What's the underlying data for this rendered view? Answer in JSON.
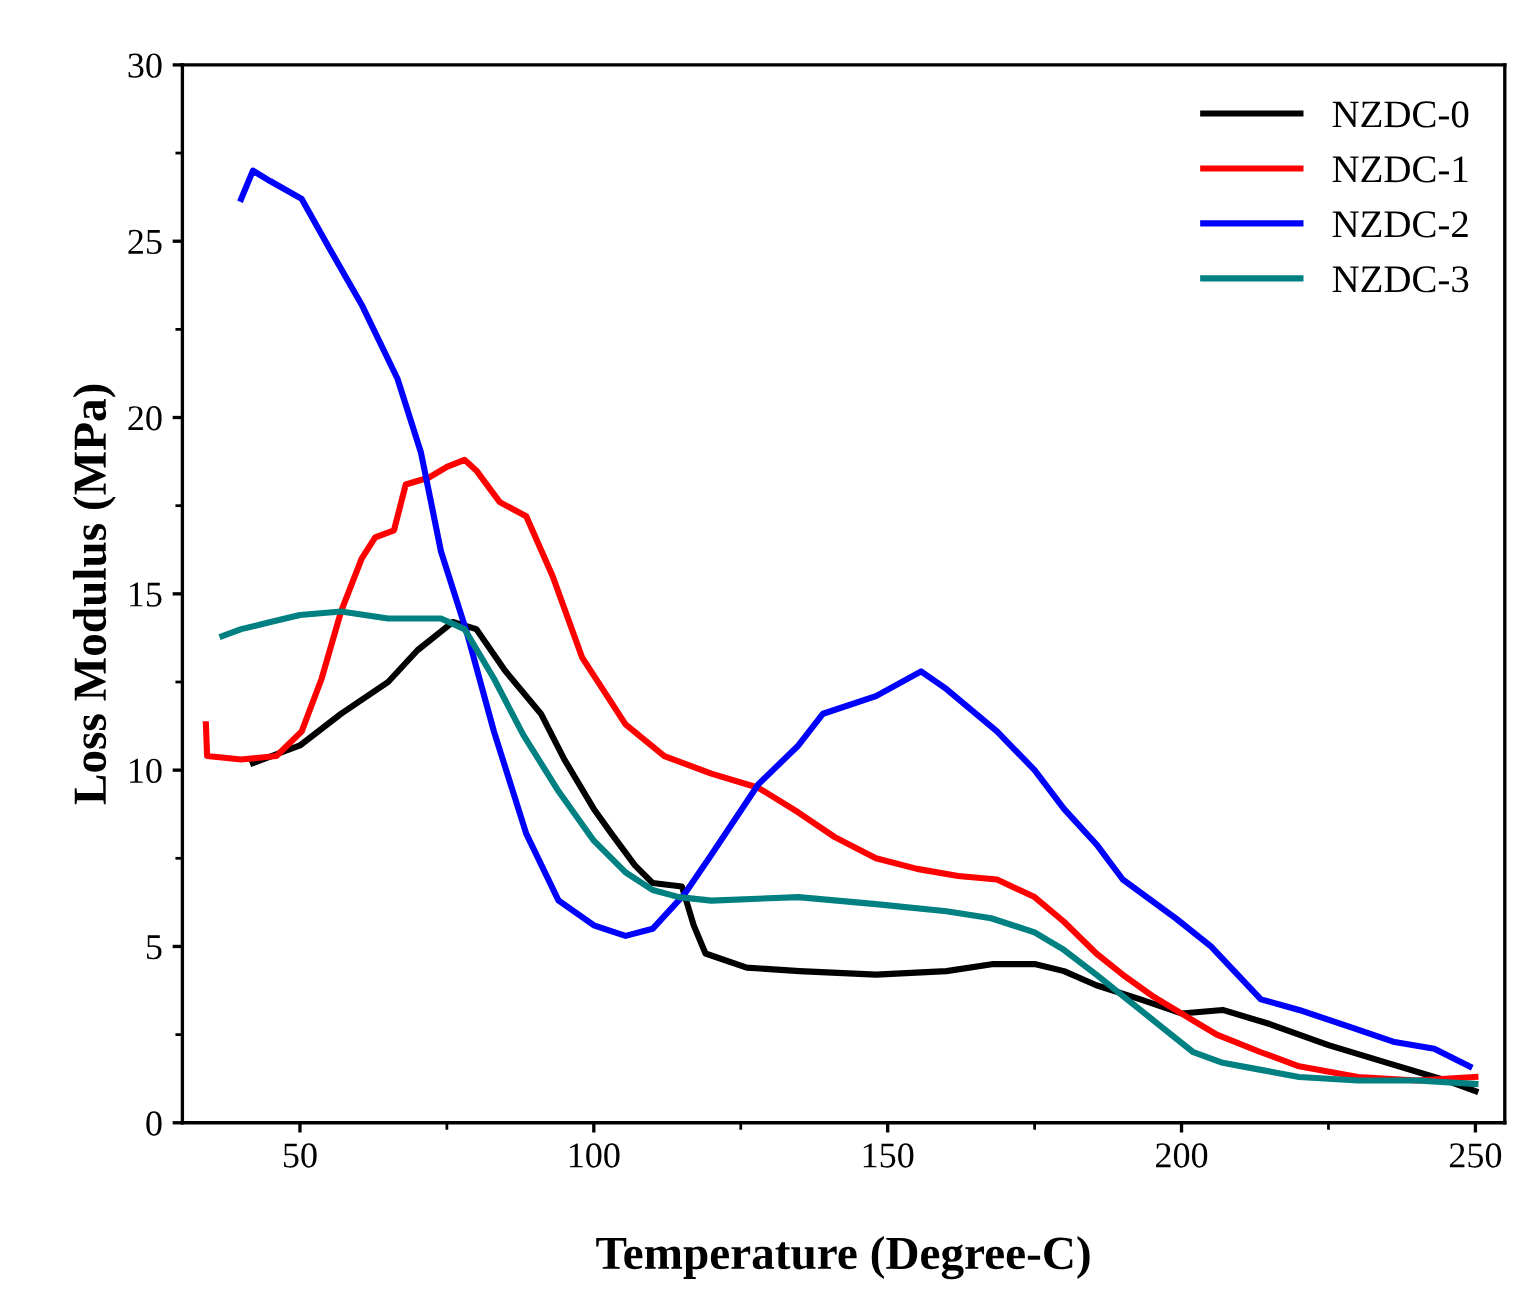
{
  "chart_data": {
    "type": "line",
    "xlabel": "Temperature (Degree-C)",
    "ylabel": "Loss Modulus (MPa)",
    "xlim": [
      30,
      255
    ],
    "ylim": [
      0,
      30
    ],
    "xticks": [
      50,
      100,
      150,
      200,
      250
    ],
    "yticks": [
      0,
      5,
      10,
      15,
      20,
      25,
      30
    ],
    "grid": false,
    "legend": "top right",
    "marker": "none",
    "line_style": "solid",
    "series": [
      {
        "name": "NZDC-0",
        "color": "#000000",
        "x": [
          42,
          50,
          57,
          65,
          70,
          76,
          80,
          85,
          91,
          95,
          100,
          103,
          107,
          110,
          115,
          117,
          119,
          126,
          135,
          148,
          160,
          168,
          175,
          180,
          185.5,
          193,
          200,
          207,
          215,
          225,
          235,
          245,
          250
        ],
        "values": [
          10.2,
          10.7,
          11.6,
          12.5,
          13.4,
          14.2,
          14.0,
          12.8,
          11.6,
          10.3,
          8.9,
          8.2,
          7.3,
          6.8,
          6.7,
          5.6,
          4.8,
          4.4,
          4.3,
          4.2,
          4.3,
          4.5,
          4.5,
          4.3,
          3.9,
          3.5,
          3.1,
          3.2,
          2.8,
          2.2,
          1.7,
          1.2,
          0.9
        ]
      },
      {
        "name": "NZDC-1",
        "color": "#ff0000",
        "x": [
          34,
          34.2,
          40,
          46,
          50.3,
          53.7,
          57,
          60.5,
          62.8,
          66,
          68,
          72,
          75,
          78,
          80,
          84,
          88.5,
          93,
          98,
          105.4,
          112,
          120,
          128,
          134.8,
          141,
          148,
          155,
          162,
          168.6,
          175,
          180,
          185.5,
          190,
          195,
          202,
          206,
          213.5,
          220,
          230,
          240,
          250
        ],
        "values": [
          11.3,
          10.4,
          10.3,
          10.4,
          11.1,
          12.6,
          14.5,
          16.0,
          16.6,
          16.8,
          18.1,
          18.3,
          18.6,
          18.8,
          18.5,
          17.6,
          17.2,
          15.5,
          13.2,
          11.3,
          10.4,
          9.9,
          9.5,
          8.8,
          8.1,
          7.5,
          7.2,
          7.0,
          6.9,
          6.4,
          5.7,
          4.8,
          4.2,
          3.6,
          2.9,
          2.5,
          2.0,
          1.6,
          1.3,
          1.2,
          1.3
        ]
      },
      {
        "name": "NZDC-2",
        "color": "#0000ff",
        "x": [
          40,
          42,
          45,
          50.3,
          55,
          60.5,
          66.6,
          70.6,
          74,
          78.4,
          83,
          88.5,
          94,
          100,
          105.4,
          110,
          115.5,
          120,
          128,
          134.8,
          139,
          148,
          155.7,
          160,
          168.6,
          175,
          180,
          185.5,
          190,
          199,
          205,
          213.5,
          220,
          229,
          236,
          243,
          249
        ],
        "values": [
          26.2,
          27.0,
          26.7,
          26.2,
          24.8,
          23.2,
          21.1,
          19.0,
          16.2,
          13.9,
          11.1,
          8.2,
          6.3,
          5.6,
          5.3,
          5.5,
          6.5,
          7.6,
          9.6,
          10.7,
          11.6,
          12.1,
          12.8,
          12.3,
          11.1,
          10.0,
          8.9,
          7.9,
          6.9,
          5.8,
          5.0,
          3.5,
          3.2,
          2.7,
          2.3,
          2.1,
          1.6
        ]
      },
      {
        "name": "NZDC-3",
        "color": "#008080",
        "x": [
          36.8,
          40,
          45,
          50,
          57,
          65,
          74,
          78,
          83,
          88,
          94,
          100,
          105.4,
          110,
          114.5,
          120,
          134.8,
          148,
          160,
          167.6,
          175,
          180,
          185.5,
          190,
          196,
          202,
          207,
          213.5,
          220,
          230,
          240,
          250
        ],
        "values": [
          13.8,
          14.0,
          14.2,
          14.4,
          14.5,
          14.3,
          14.3,
          14.0,
          12.6,
          11.0,
          9.4,
          8.0,
          7.1,
          6.6,
          6.4,
          6.3,
          6.4,
          6.2,
          6.0,
          5.8,
          5.4,
          4.9,
          4.2,
          3.6,
          2.8,
          2.0,
          1.7,
          1.5,
          1.3,
          1.2,
          1.2,
          1.1
        ]
      }
    ]
  }
}
